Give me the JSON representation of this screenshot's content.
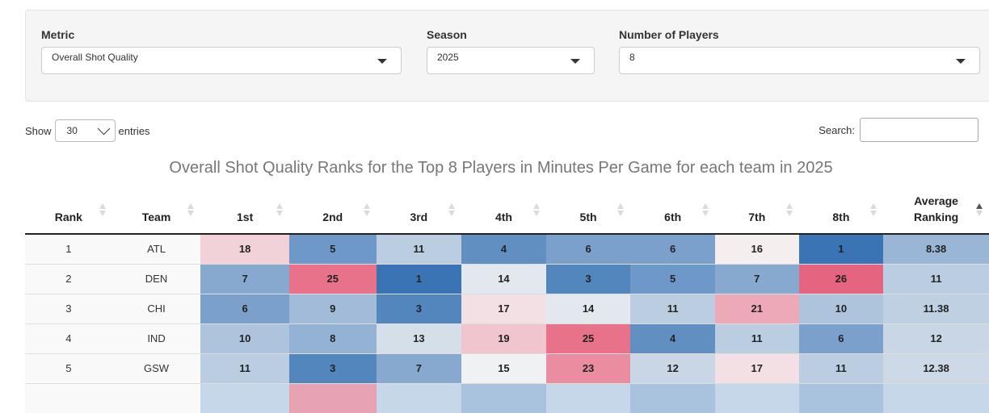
{
  "filters": {
    "metric": {
      "label": "Metric",
      "value": "Overall Shot Quality"
    },
    "season": {
      "label": "Season",
      "value": "2025"
    },
    "players": {
      "label": "Number of Players",
      "value": "8"
    }
  },
  "controls": {
    "show_label": "Show",
    "entries_value": "30",
    "entries_label": "entries",
    "search_label": "Search:",
    "search_value": ""
  },
  "table": {
    "caption": "Overall Shot Quality Ranks for the Top 8 Players in Minutes Per Game for each team in 2025",
    "columns": [
      "Rank",
      "Team",
      "1st",
      "2nd",
      "3rd",
      "4th",
      "5th",
      "6th",
      "7th",
      "8th",
      "Average Ranking"
    ],
    "sorted_column": "Average Ranking",
    "rows": [
      {
        "rank": "1",
        "team": "ATL",
        "values": [
          "18",
          "5",
          "11",
          "4",
          "6",
          "6",
          "16",
          "1"
        ],
        "avg": "8.38"
      },
      {
        "rank": "2",
        "team": "DEN",
        "values": [
          "7",
          "25",
          "1",
          "14",
          "3",
          "5",
          "7",
          "26"
        ],
        "avg": "11"
      },
      {
        "rank": "3",
        "team": "CHI",
        "values": [
          "6",
          "9",
          "3",
          "17",
          "14",
          "11",
          "21",
          "10"
        ],
        "avg": "11.38"
      },
      {
        "rank": "4",
        "team": "IND",
        "values": [
          "10",
          "8",
          "13",
          "19",
          "25",
          "4",
          "11",
          "6"
        ],
        "avg": "12"
      },
      {
        "rank": "5",
        "team": "GSW",
        "values": [
          "11",
          "3",
          "7",
          "15",
          "23",
          "12",
          "17",
          "11"
        ],
        "avg": "12.38"
      },
      {
        "rank": "",
        "team": "",
        "values": [
          "",
          "",
          "",
          "",
          "",
          "",
          "",
          ""
        ],
        "avg": ""
      }
    ]
  },
  "colors": {
    "best": "#3a74b5",
    "neutral": "#f5f5f5",
    "worst": "#e5647f",
    "caption": "#777777"
  }
}
